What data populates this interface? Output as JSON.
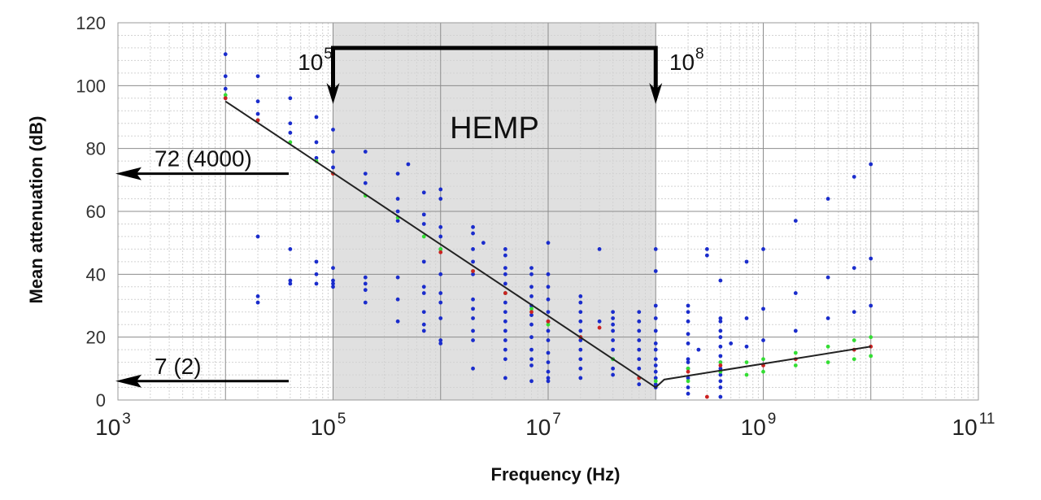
{
  "chart_data": {
    "type": "scatter",
    "xscale": "log",
    "xlim": [
      1000,
      100000000000
    ],
    "ylim": [
      0,
      120
    ],
    "grid": true,
    "xlabel": "Frequency (Hz)",
    "ylabel": "Mean attenuation (dB)",
    "yticks": [
      "0",
      "20",
      "40",
      "60",
      "80",
      "100",
      "120"
    ],
    "xticks": [
      {
        "base": "10",
        "exp": "3",
        "value": 1000
      },
      {
        "base": "10",
        "exp": "5",
        "value": 100000
      },
      {
        "base": "10",
        "exp": "7",
        "value": 10000000
      },
      {
        "base": "10",
        "exp": "9",
        "value": 1000000000
      },
      {
        "base": "10",
        "exp": "11",
        "value": 100000000000
      }
    ],
    "region": {
      "label": "HEMP",
      "x_start": 100000,
      "x_end": 100000000,
      "start_label": {
        "base": "10",
        "exp": "5"
      },
      "end_label": {
        "base": "10",
        "exp": "8"
      },
      "fill": "#e0e0e0"
    },
    "annotations": [
      {
        "text": "72 (4000)",
        "y": 72
      },
      {
        "text": "7 (2)",
        "y": 6
      }
    ],
    "colors": {
      "points": "#1a2ccc",
      "mean_points": "#33dd33",
      "median_points": "#cc2222",
      "fit_line": "#222222"
    },
    "series": [
      {
        "kind": "scatter",
        "color": "#1a2ccc",
        "points": [
          [
            10000,
            110
          ],
          [
            10000,
            103
          ],
          [
            10000,
            99
          ],
          [
            10000,
            96
          ],
          [
            20000,
            103
          ],
          [
            20000,
            95
          ],
          [
            20000,
            91
          ],
          [
            20000,
            52
          ],
          [
            20000,
            33
          ],
          [
            20000,
            31
          ],
          [
            40000,
            96
          ],
          [
            40000,
            88
          ],
          [
            40000,
            85
          ],
          [
            40000,
            48
          ],
          [
            40000,
            38
          ],
          [
            40000,
            37
          ],
          [
            70000,
            90
          ],
          [
            70000,
            82
          ],
          [
            70000,
            77
          ],
          [
            70000,
            44
          ],
          [
            70000,
            40
          ],
          [
            70000,
            37
          ],
          [
            100000,
            86
          ],
          [
            100000,
            79
          ],
          [
            100000,
            74
          ],
          [
            100000,
            42
          ],
          [
            100000,
            38
          ],
          [
            100000,
            37
          ],
          [
            100000,
            36
          ],
          [
            200000,
            79
          ],
          [
            200000,
            72
          ],
          [
            200000,
            69
          ],
          [
            200000,
            39
          ],
          [
            200000,
            37
          ],
          [
            200000,
            35
          ],
          [
            200000,
            31
          ],
          [
            400000,
            72
          ],
          [
            400000,
            64
          ],
          [
            400000,
            60
          ],
          [
            400000,
            57
          ],
          [
            400000,
            39
          ],
          [
            400000,
            32
          ],
          [
            400000,
            25
          ],
          [
            500000,
            75
          ],
          [
            700000,
            66
          ],
          [
            700000,
            59
          ],
          [
            700000,
            56
          ],
          [
            700000,
            44
          ],
          [
            700000,
            36
          ],
          [
            700000,
            34
          ],
          [
            700000,
            28
          ],
          [
            700000,
            24
          ],
          [
            700000,
            22
          ],
          [
            1000000,
            67
          ],
          [
            1000000,
            64
          ],
          [
            1000000,
            55
          ],
          [
            1000000,
            52
          ],
          [
            1000000,
            48
          ],
          [
            1000000,
            40
          ],
          [
            1000000,
            34
          ],
          [
            1000000,
            31
          ],
          [
            1000000,
            26
          ],
          [
            1000000,
            19
          ],
          [
            1000000,
            18
          ],
          [
            2000000,
            55
          ],
          [
            2000000,
            53
          ],
          [
            2000000,
            48
          ],
          [
            2000000,
            44
          ],
          [
            2000000,
            40
          ],
          [
            2000000,
            32
          ],
          [
            2000000,
            29
          ],
          [
            2000000,
            26
          ],
          [
            2000000,
            22
          ],
          [
            2000000,
            19
          ],
          [
            2000000,
            10
          ],
          [
            2500000,
            50
          ],
          [
            4000000,
            48
          ],
          [
            4000000,
            46
          ],
          [
            4000000,
            42
          ],
          [
            4000000,
            40
          ],
          [
            4000000,
            37
          ],
          [
            4000000,
            34
          ],
          [
            4000000,
            31
          ],
          [
            4000000,
            28
          ],
          [
            4000000,
            25
          ],
          [
            4000000,
            22
          ],
          [
            4000000,
            19
          ],
          [
            4000000,
            16
          ],
          [
            4000000,
            13
          ],
          [
            4000000,
            7
          ],
          [
            7000000,
            42
          ],
          [
            7000000,
            40
          ],
          [
            7000000,
            36
          ],
          [
            7000000,
            33
          ],
          [
            7000000,
            30
          ],
          [
            7000000,
            27
          ],
          [
            7000000,
            24
          ],
          [
            7000000,
            20
          ],
          [
            7000000,
            16
          ],
          [
            7000000,
            13
          ],
          [
            7000000,
            11
          ],
          [
            7000000,
            6
          ],
          [
            10000000,
            50
          ],
          [
            10000000,
            40
          ],
          [
            10000000,
            36
          ],
          [
            10000000,
            32
          ],
          [
            10000000,
            28
          ],
          [
            10000000,
            25
          ],
          [
            10000000,
            22
          ],
          [
            10000000,
            19
          ],
          [
            10000000,
            15
          ],
          [
            10000000,
            12
          ],
          [
            10000000,
            9
          ],
          [
            10000000,
            7
          ],
          [
            10000000,
            6
          ],
          [
            20000000,
            33
          ],
          [
            20000000,
            31
          ],
          [
            20000000,
            28
          ],
          [
            20000000,
            25
          ],
          [
            20000000,
            22
          ],
          [
            20000000,
            19
          ],
          [
            20000000,
            16
          ],
          [
            20000000,
            13
          ],
          [
            20000000,
            10
          ],
          [
            20000000,
            7
          ],
          [
            30000000,
            48
          ],
          [
            30000000,
            25
          ],
          [
            40000000,
            28
          ],
          [
            40000000,
            26
          ],
          [
            40000000,
            24
          ],
          [
            40000000,
            22
          ],
          [
            40000000,
            19
          ],
          [
            40000000,
            16
          ],
          [
            40000000,
            13
          ],
          [
            40000000,
            10
          ],
          [
            40000000,
            8
          ],
          [
            70000000,
            28
          ],
          [
            70000000,
            25
          ],
          [
            70000000,
            22
          ],
          [
            70000000,
            19
          ],
          [
            70000000,
            16
          ],
          [
            70000000,
            13
          ],
          [
            70000000,
            10
          ],
          [
            70000000,
            7
          ],
          [
            70000000,
            5
          ],
          [
            100000000,
            48
          ],
          [
            100000000,
            41
          ],
          [
            100000000,
            30
          ],
          [
            100000000,
            26
          ],
          [
            100000000,
            22
          ],
          [
            100000000,
            18
          ],
          [
            100000000,
            16
          ],
          [
            100000000,
            13
          ],
          [
            100000000,
            11
          ],
          [
            100000000,
            9
          ],
          [
            100000000,
            7
          ],
          [
            100000000,
            5
          ],
          [
            100000000,
            4
          ],
          [
            200000000,
            30
          ],
          [
            200000000,
            28
          ],
          [
            200000000,
            25
          ],
          [
            200000000,
            21
          ],
          [
            200000000,
            18
          ],
          [
            200000000,
            13
          ],
          [
            200000000,
            12
          ],
          [
            200000000,
            10
          ],
          [
            200000000,
            7
          ],
          [
            200000000,
            4
          ],
          [
            200000000,
            2
          ],
          [
            250000000,
            16
          ],
          [
            300000000,
            48
          ],
          [
            300000000,
            46
          ],
          [
            400000000,
            38
          ],
          [
            400000000,
            26
          ],
          [
            400000000,
            25
          ],
          [
            400000000,
            22
          ],
          [
            400000000,
            20
          ],
          [
            400000000,
            17
          ],
          [
            400000000,
            14
          ],
          [
            400000000,
            12
          ],
          [
            400000000,
            10
          ],
          [
            400000000,
            8
          ],
          [
            400000000,
            6
          ],
          [
            400000000,
            4
          ],
          [
            400000000,
            1
          ],
          [
            500000000,
            18
          ],
          [
            700000000,
            44
          ],
          [
            700000000,
            26
          ],
          [
            700000000,
            17
          ],
          [
            1000000000,
            48
          ],
          [
            1000000000,
            29
          ],
          [
            1000000000,
            19
          ],
          [
            2000000000,
            57
          ],
          [
            2000000000,
            34
          ],
          [
            2000000000,
            22
          ],
          [
            4000000000,
            64
          ],
          [
            4000000000,
            39
          ],
          [
            4000000000,
            26
          ],
          [
            7000000000,
            71
          ],
          [
            7000000000,
            42
          ],
          [
            7000000000,
            28
          ],
          [
            10000000000,
            75
          ],
          [
            10000000000,
            45
          ],
          [
            10000000000,
            30
          ]
        ]
      },
      {
        "kind": "scatter",
        "color": "#33dd33",
        "points": [
          [
            10000,
            97
          ],
          [
            20000,
            89
          ],
          [
            40000,
            82
          ],
          [
            70000,
            76
          ],
          [
            100000,
            72
          ],
          [
            200000,
            65
          ],
          [
            400000,
            58
          ],
          [
            700000,
            52
          ],
          [
            1000000,
            48
          ],
          [
            2000000,
            41
          ],
          [
            4000000,
            34
          ],
          [
            7000000,
            29
          ],
          [
            10000000,
            24
          ],
          [
            20000000,
            20
          ],
          [
            40000000,
            13
          ],
          [
            70000000,
            7
          ],
          [
            100000000,
            6
          ],
          [
            200000000,
            10
          ],
          [
            200000000,
            6
          ],
          [
            400000000,
            12
          ],
          [
            400000000,
            9
          ],
          [
            700000000,
            12
          ],
          [
            700000000,
            8
          ],
          [
            1000000000,
            13
          ],
          [
            1000000000,
            9
          ],
          [
            2000000000,
            15
          ],
          [
            2000000000,
            11
          ],
          [
            4000000000,
            17
          ],
          [
            4000000000,
            12
          ],
          [
            7000000000,
            19
          ],
          [
            7000000000,
            13
          ],
          [
            10000000000,
            20
          ],
          [
            10000000000,
            14
          ]
        ]
      },
      {
        "kind": "scatter",
        "color": "#cc2222",
        "points": [
          [
            10000,
            96
          ],
          [
            20000,
            89
          ],
          [
            100000,
            72
          ],
          [
            1000000,
            47
          ],
          [
            2000000,
            41
          ],
          [
            4000000,
            34
          ],
          [
            7000000,
            28
          ],
          [
            10000000,
            25
          ],
          [
            20000000,
            20
          ],
          [
            30000000,
            23
          ],
          [
            70000000,
            7
          ],
          [
            200000000,
            9
          ],
          [
            300000000,
            1
          ],
          [
            400000000,
            11
          ],
          [
            1000000000,
            11
          ],
          [
            2000000000,
            13
          ],
          [
            7000000000,
            16
          ],
          [
            10000000000,
            17
          ]
        ]
      }
    ],
    "fit_line": {
      "color": "#222222",
      "points": [
        [
          10000,
          95
        ],
        [
          100000000,
          4
        ],
        [
          120000000,
          6.5
        ],
        [
          10000000000,
          17
        ]
      ]
    }
  }
}
